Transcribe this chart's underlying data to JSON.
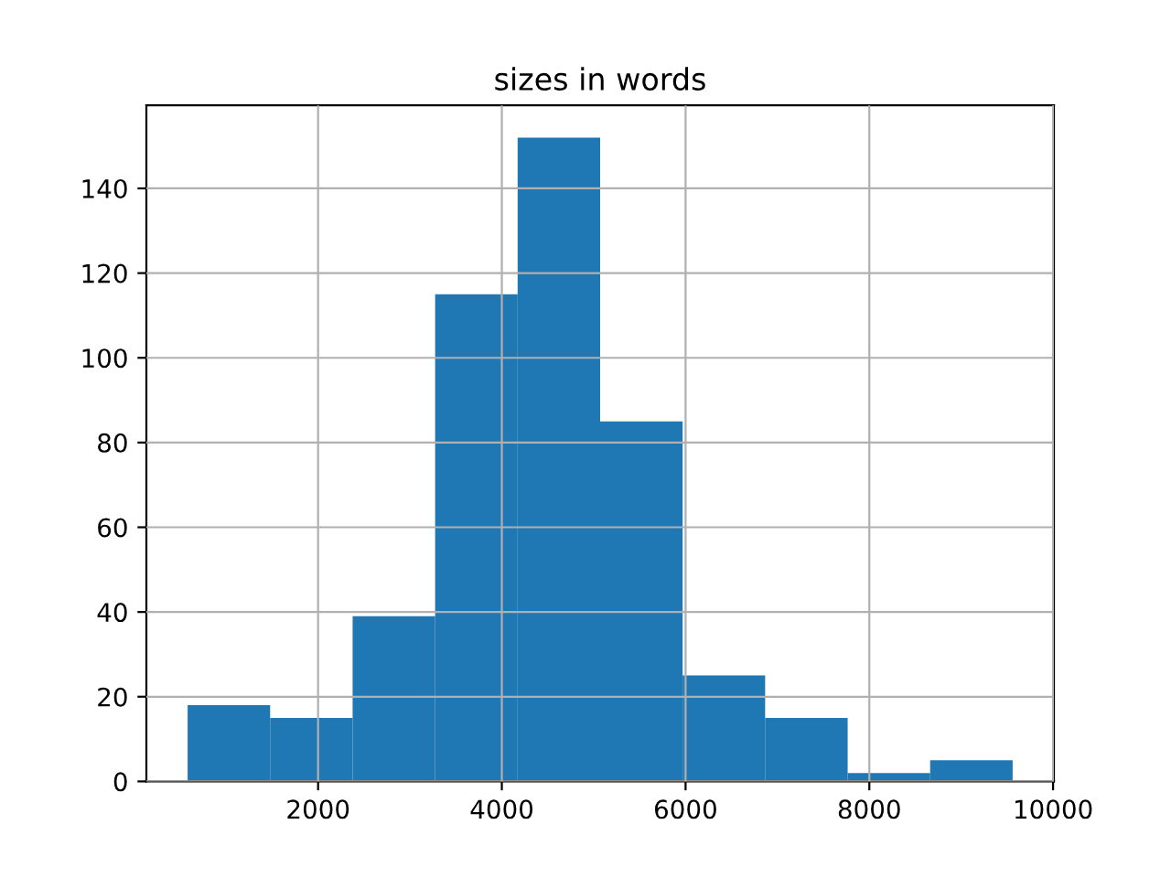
{
  "chart_data": {
    "type": "histogram",
    "title": "sizes in words",
    "bins": [
      580,
      1478,
      2376,
      3274,
      4172,
      5070,
      5968,
      6866,
      7764,
      8662,
      9560
    ],
    "values": [
      18,
      15,
      39,
      115,
      152,
      85,
      25,
      15,
      2,
      5
    ],
    "color": "#1f77b4",
    "xlim": [
      131,
      10009
    ],
    "xticks": [
      2000,
      4000,
      6000,
      8000,
      10000
    ],
    "ylim": [
      0,
      159.6
    ],
    "yticks": [
      0,
      20,
      40,
      60,
      80,
      100,
      120,
      140
    ],
    "grid": true
  }
}
